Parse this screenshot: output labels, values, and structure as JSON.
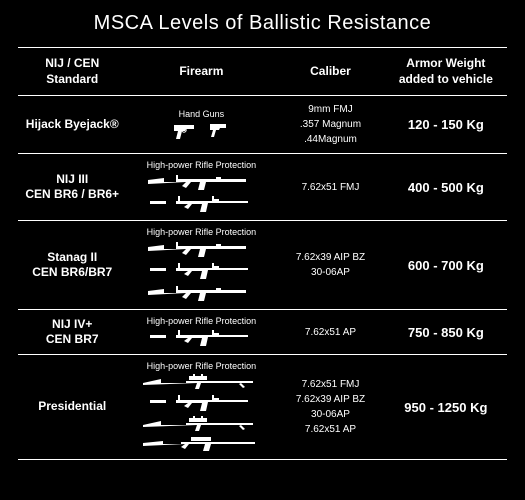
{
  "title": "MSCA Levels of Ballistic Resistance",
  "columns": {
    "standard": "NIJ / CEN Standard",
    "firearm": "Firearm",
    "caliber": "Caliber",
    "weight": "Armor Weight added to vehicle"
  },
  "rows": [
    {
      "standard": "Hijack Byejack®",
      "firearm_label": "Hand Guns",
      "firearm_type": "handguns",
      "calibers": [
        "9mm FMJ",
        ".357 Magnum",
        ".44Magnum"
      ],
      "weight": "120 - 150 Kg"
    },
    {
      "standard": "NIJ III\nCEN BR6 / BR6+",
      "firearm_label": "High-power Rifle Protection",
      "firearm_type": "rifles2",
      "calibers": [
        "7.62x51 FMJ"
      ],
      "weight": "400 - 500 Kg"
    },
    {
      "standard": "Stanag II\nCEN BR6/BR7",
      "firearm_label": "High-power Rifle Protection",
      "firearm_type": "rifles3",
      "calibers": [
        "7.62x39 AIP BZ",
        "30-06AP"
      ],
      "weight": "600 - 700 Kg"
    },
    {
      "standard": "NIJ IV+\nCEN BR7",
      "firearm_label": "High-power Rifle Protection",
      "firearm_type": "rifles1",
      "calibers": [
        "7.62x51 AP"
      ],
      "weight": "750 - 850 Kg"
    },
    {
      "standard": "Presidential",
      "firearm_label": "High-power Rifle Protection",
      "firearm_type": "rifles4",
      "calibers": [
        "7.62x51 FMJ",
        "7.62x39 AIP BZ",
        "30-06AP",
        "7.62x51 AP"
      ],
      "weight": "950 - 1250 Kg"
    }
  ],
  "colors": {
    "background": "#000000",
    "foreground": "#ffffff",
    "border": "#ffffff"
  }
}
